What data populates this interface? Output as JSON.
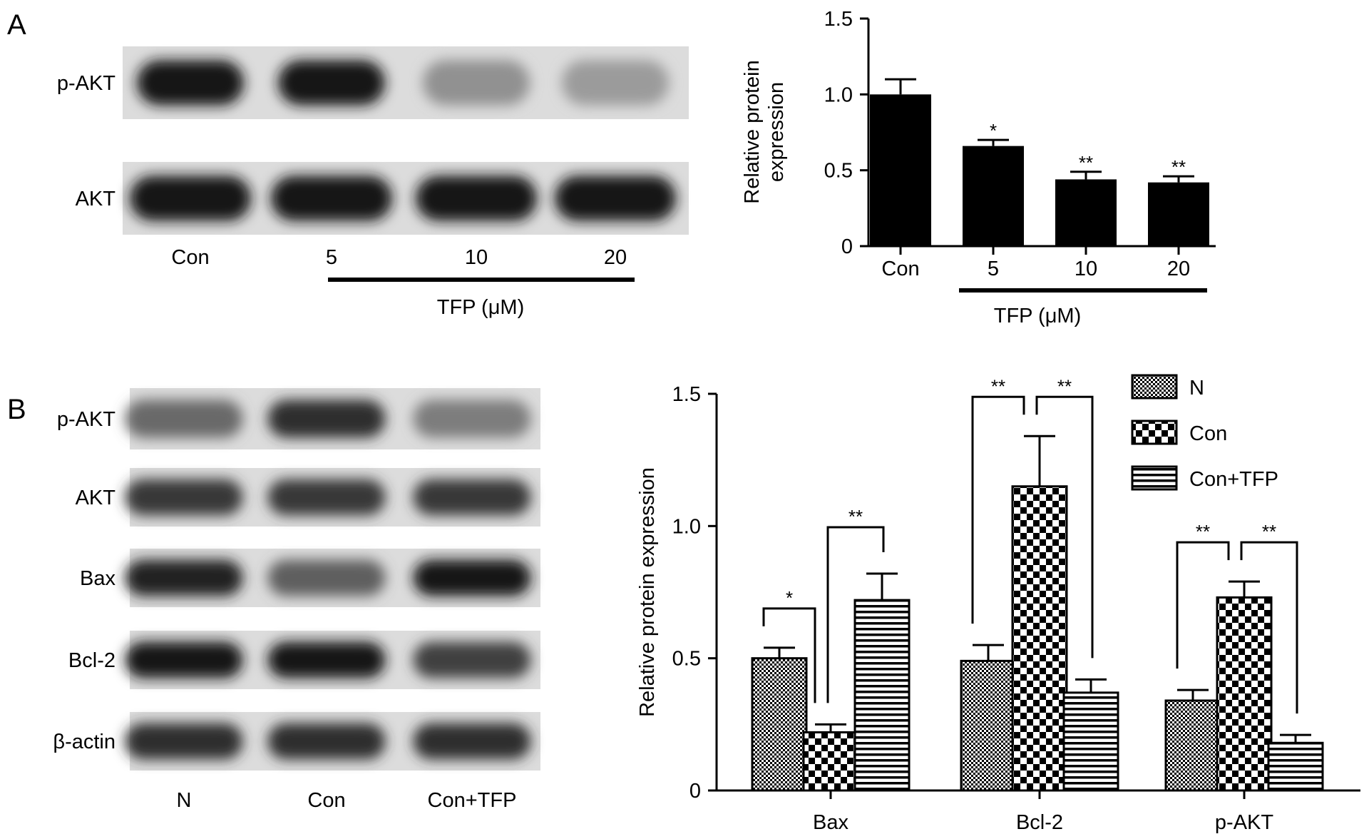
{
  "panels": {
    "a": {
      "letter": "A",
      "blot": {
        "rows": [
          {
            "label": "p-AKT",
            "intensities": [
              0.98,
              0.95,
              0.35,
              0.3
            ]
          },
          {
            "label": "AKT",
            "intensities": [
              0.98,
              0.98,
              0.97,
              0.98
            ]
          }
        ],
        "lanes": [
          "Con",
          "5",
          "10",
          "20"
        ],
        "treatment_label": "TFP (μM)"
      }
    },
    "b": {
      "letter": "B",
      "blot": {
        "rows": [
          {
            "label": "p-AKT",
            "intensities": [
              0.55,
              0.85,
              0.45
            ]
          },
          {
            "label": "AKT",
            "intensities": [
              0.8,
              0.8,
              0.8
            ]
          },
          {
            "label": "Bax",
            "intensities": [
              0.9,
              0.6,
              0.98
            ]
          },
          {
            "label": "Bcl-2",
            "intensities": [
              0.95,
              0.95,
              0.75
            ]
          },
          {
            "label": "β-actin",
            "intensities": [
              0.85,
              0.85,
              0.85
            ]
          }
        ],
        "lanes": [
          "N",
          "Con",
          "Con+TFP"
        ]
      }
    }
  },
  "chart_data": [
    {
      "type": "bar",
      "panel": "A",
      "categories": [
        "Con",
        "5",
        "10",
        "20"
      ],
      "values": [
        1.0,
        0.66,
        0.44,
        0.42
      ],
      "errors": [
        0.1,
        0.04,
        0.05,
        0.04
      ],
      "significance": [
        "",
        "*",
        "**",
        "**"
      ],
      "ylabel": "Relative protein expression",
      "ylim": [
        0,
        1.5
      ],
      "yticks": [
        "0",
        "0.5",
        "1.0",
        "1.5"
      ],
      "ytick_values": [
        0,
        0.5,
        1.0,
        1.5
      ],
      "group_label": "TFP (μM)",
      "colors": {
        "bar": "#000000"
      }
    },
    {
      "type": "bar",
      "panel": "B",
      "categories": [
        "Bax",
        "Bcl-2",
        "p-AKT"
      ],
      "series": [
        {
          "name": "N",
          "values": [
            0.5,
            0.49,
            0.34
          ],
          "errors": [
            0.04,
            0.06,
            0.04
          ],
          "pattern": "fine-check"
        },
        {
          "name": "Con",
          "values": [
            0.22,
            1.15,
            0.73
          ],
          "errors": [
            0.03,
            0.19,
            0.06
          ],
          "pattern": "coarse-check"
        },
        {
          "name": "Con+TFP",
          "values": [
            0.72,
            0.37,
            0.18
          ],
          "errors": [
            0.1,
            0.05,
            0.03
          ],
          "pattern": "horizontal-stripes"
        }
      ],
      "comparisons": [
        {
          "category": 0,
          "pair": [
            0,
            1
          ],
          "label": "*"
        },
        {
          "category": 0,
          "pair": [
            1,
            2
          ],
          "label": "**"
        },
        {
          "category": 1,
          "pair": [
            0,
            1
          ],
          "label": "**"
        },
        {
          "category": 1,
          "pair": [
            1,
            2
          ],
          "label": "**"
        },
        {
          "category": 2,
          "pair": [
            0,
            1
          ],
          "label": "**"
        },
        {
          "category": 2,
          "pair": [
            1,
            2
          ],
          "label": "**"
        }
      ],
      "ylabel": "Relative protein expression",
      "ylim": [
        0,
        1.5
      ],
      "yticks": [
        "0",
        "0.5",
        "1.0",
        "1.5"
      ],
      "ytick_values": [
        0,
        0.5,
        1.0,
        1.5
      ],
      "legend_position": "top-right"
    }
  ]
}
